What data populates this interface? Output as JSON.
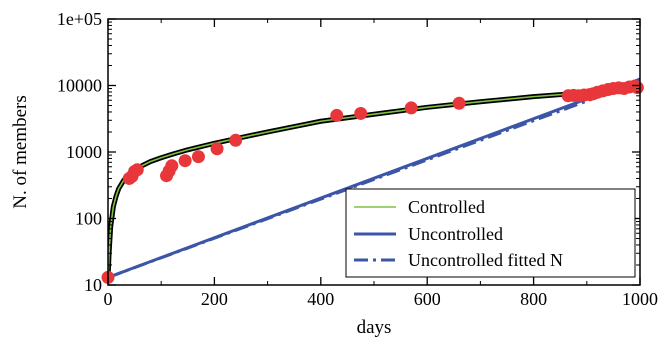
{
  "chart_data": {
    "type": "scatter",
    "title": "",
    "xlabel": "days",
    "ylabel": "N. of members",
    "xlim": [
      0,
      1000
    ],
    "ylim": [
      10,
      100000
    ],
    "yscale": "log",
    "grid": false,
    "legend_position": "bottom-right",
    "x_ticks": [
      0,
      200,
      400,
      600,
      800,
      1000
    ],
    "x_tick_labels": [
      "0",
      "200",
      "400",
      "600",
      "800",
      "1000"
    ],
    "y_ticks": [
      10,
      100,
      1000,
      10000,
      100000
    ],
    "y_tick_labels": [
      "10",
      "100",
      "1000",
      "10000",
      "1e+05"
    ],
    "series": [
      {
        "name": "Controlled",
        "kind": "line",
        "color": "#7dc242",
        "outline_color": "#000000",
        "x": [
          0,
          2,
          5,
          10,
          15,
          20,
          30,
          40,
          50,
          60,
          80,
          100,
          120,
          150,
          200,
          250,
          300,
          400,
          500,
          600,
          700,
          800,
          870,
          900,
          950,
          1000
        ],
        "y": [
          12,
          30,
          75,
          150,
          215,
          280,
          380,
          460,
          530,
          600,
          720,
          820,
          920,
          1080,
          1350,
          1650,
          2000,
          2900,
          3700,
          4700,
          5700,
          6800,
          7500,
          7900,
          8600,
          9400
        ]
      },
      {
        "name": "Uncontrolled",
        "kind": "line",
        "color": "#3b55a7",
        "x": [
          0,
          1000
        ],
        "y": [
          13,
          12500
        ]
      },
      {
        "name": "Uncontrolled fitted N",
        "kind": "dash-dot",
        "color": "#3b55a7",
        "x": [
          0,
          1000
        ],
        "y": [
          13,
          11500
        ]
      },
      {
        "kind": "points",
        "color": "#e8373b",
        "x": [
          0,
          40,
          45,
          50,
          55,
          110,
          115,
          120,
          145,
          170,
          205,
          240,
          430,
          475,
          570,
          660,
          865,
          875,
          885,
          895,
          905,
          912,
          920,
          930,
          940,
          950,
          960,
          970,
          980,
          990,
          995
        ],
        "y": [
          13,
          400,
          430,
          510,
          540,
          440,
          520,
          620,
          740,
          850,
          1120,
          1500,
          3550,
          3800,
          4600,
          5400,
          7000,
          7100,
          7000,
          7200,
          7300,
          7500,
          7900,
          8300,
          8700,
          9000,
          9200,
          9000,
          9500,
          9800,
          9300
        ]
      }
    ]
  }
}
